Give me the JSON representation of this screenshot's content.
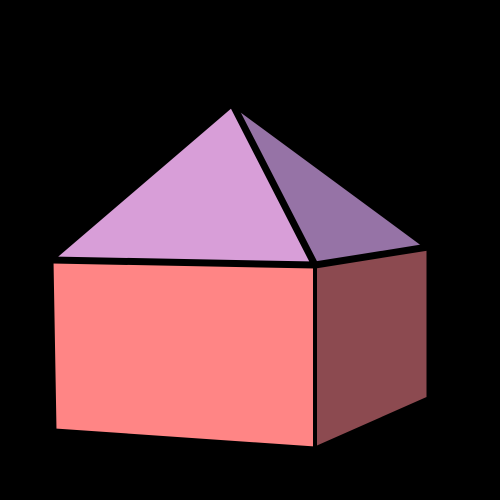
{
  "figure": {
    "background": "#000000",
    "outline_color": "#000000",
    "faces": {
      "cube_front": "#FF8585",
      "cube_side": "#8C4A50",
      "roof_front": "#D89ED8",
      "roof_side": "#9673A6"
    }
  }
}
